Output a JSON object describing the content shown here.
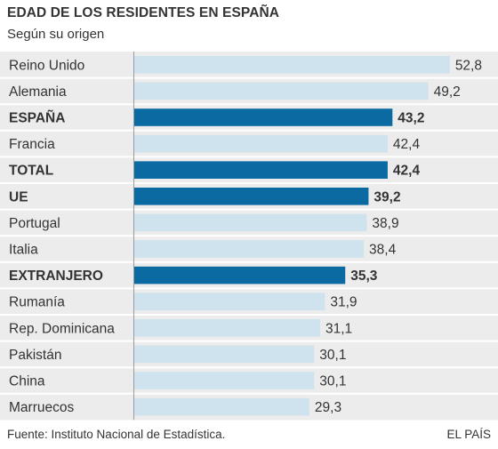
{
  "header": {
    "title": "EDAD DE LOS RESIDENTES EN ESPAÑA",
    "subtitle": "Según su origen"
  },
  "footer": {
    "source": "Fuente: Instituto Nacional de Estadística.",
    "brand": "EL PAÍS"
  },
  "colors": {
    "highlight_bar": "#0a6aa1",
    "normal_bar": "#cfe3ee",
    "row_background": "#ececec"
  },
  "chart_data": {
    "type": "bar",
    "orientation": "horizontal",
    "title": "EDAD DE LOS RESIDENTES EN ESPAÑA",
    "subtitle": "Según su origen",
    "xlim": [
      0,
      55
    ],
    "grid": false,
    "categories": [
      "Reino Unido",
      "Alemania",
      "ESPAÑA",
      "Francia",
      "TOTAL",
      "UE",
      "Portugal",
      "Italia",
      "EXTRANJERO",
      "Rumanía",
      "Rep. Dominicana",
      "Pakistán",
      "China",
      "Marruecos"
    ],
    "values": [
      52.8,
      49.2,
      43.2,
      42.4,
      42.4,
      39.2,
      38.9,
      38.4,
      35.3,
      31.9,
      31.1,
      30.1,
      30.1,
      29.3
    ],
    "value_labels": [
      "52,8",
      "49,2",
      "43,2",
      "42,4",
      "42,4",
      "39,2",
      "38,9",
      "38,4",
      "35,3",
      "31,9",
      "31,1",
      "30,1",
      "30,1",
      "29,3"
    ],
    "highlighted": [
      "ESPAÑA",
      "TOTAL",
      "UE",
      "EXTRANJERO"
    ]
  }
}
